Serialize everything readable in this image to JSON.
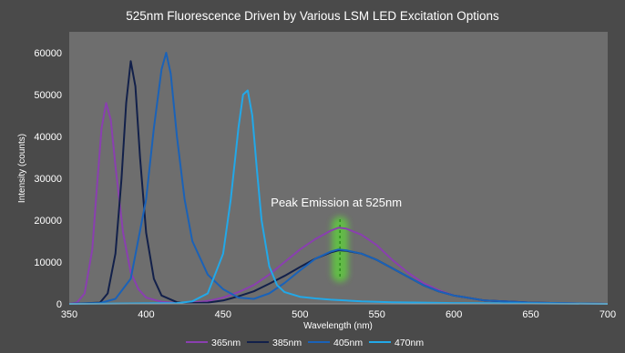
{
  "chart_data": {
    "type": "line",
    "title": "525nm Fluorescence Driven by Various LSM LED Excitation Options",
    "xlabel": "Wavelength (nm)",
    "ylabel": "Intensity (counts)",
    "xlim": [
      350,
      700
    ],
    "ylim": [
      0,
      65000
    ],
    "x_ticks": [
      350,
      400,
      450,
      500,
      550,
      600,
      650,
      700
    ],
    "y_ticks": [
      0,
      10000,
      20000,
      30000,
      40000,
      50000,
      60000
    ],
    "x_tick_labels": [
      "350",
      "400",
      "450",
      "500",
      "550",
      "600",
      "650",
      "700"
    ],
    "y_tick_labels": [
      "0",
      "10000",
      "20000",
      "30000",
      "40000",
      "50000",
      "60000"
    ],
    "grid": false,
    "legend_position": "bottom",
    "annotation": {
      "text": "Peak Emission at 525nm",
      "x": 526
    },
    "series": [
      {
        "name": "365nm",
        "color": "#8a3fb0",
        "x": [
          350,
          355,
          360,
          365,
          368,
          371,
          374,
          377,
          380,
          385,
          390,
          395,
          400,
          410,
          420,
          430,
          440,
          450,
          460,
          470,
          480,
          490,
          500,
          510,
          520,
          525,
          530,
          540,
          550,
          560,
          570,
          580,
          590,
          600,
          620,
          650,
          680,
          700
        ],
        "y": [
          0,
          300,
          2500,
          13000,
          28000,
          42000,
          48000,
          44000,
          33000,
          17000,
          7500,
          3500,
          1500,
          500,
          200,
          300,
          700,
          1500,
          2800,
          4500,
          7000,
          10000,
          13000,
          15500,
          17500,
          18200,
          18000,
          16500,
          14000,
          10500,
          7500,
          5000,
          3300,
          2000,
          800,
          300,
          100,
          0
        ]
      },
      {
        "name": "385nm",
        "color": "#12204a",
        "x": [
          350,
          370,
          375,
          380,
          384,
          387,
          390,
          393,
          396,
          400,
          405,
          410,
          420,
          430,
          440,
          450,
          460,
          470,
          480,
          490,
          500,
          510,
          520,
          525,
          530,
          540,
          550,
          560,
          570,
          580,
          590,
          600,
          620,
          650,
          680,
          700
        ],
        "y": [
          0,
          300,
          2500,
          12000,
          30000,
          48000,
          58000,
          52000,
          35000,
          17000,
          6000,
          2000,
          400,
          200,
          300,
          800,
          1800,
          3000,
          4800,
          6700,
          8800,
          10800,
          12300,
          12800,
          12700,
          12000,
          10500,
          8500,
          6500,
          4500,
          3000,
          2000,
          800,
          300,
          100,
          0
        ]
      },
      {
        "name": "405nm",
        "color": "#1a62b8",
        "x": [
          350,
          370,
          380,
          390,
          400,
          405,
          410,
          413,
          416,
          420,
          425,
          430,
          440,
          450,
          460,
          470,
          480,
          490,
          500,
          510,
          520,
          525,
          530,
          540,
          550,
          560,
          570,
          580,
          590,
          600,
          620,
          650,
          680,
          700
        ],
        "y": [
          0,
          200,
          1200,
          6000,
          25000,
          42000,
          56000,
          60000,
          55000,
          40000,
          25000,
          15000,
          7000,
          3500,
          1500,
          1200,
          2500,
          5000,
          8000,
          10800,
          12500,
          13000,
          12800,
          12000,
          10500,
          8500,
          6500,
          4500,
          3000,
          2000,
          800,
          300,
          100,
          0
        ]
      },
      {
        "name": "470nm",
        "color": "#22a8e8",
        "x": [
          350,
          420,
          430,
          440,
          450,
          455,
          460,
          463,
          466,
          469,
          472,
          475,
          480,
          485,
          490,
          500,
          510,
          520,
          530,
          540,
          550,
          560,
          580,
          600,
          650,
          700
        ],
        "y": [
          0,
          200,
          600,
          2500,
          12000,
          25000,
          42000,
          50000,
          51000,
          45000,
          32000,
          20000,
          9000,
          4500,
          2800,
          1700,
          1300,
          1000,
          800,
          600,
          500,
          400,
          300,
          200,
          100,
          0
        ]
      }
    ]
  }
}
